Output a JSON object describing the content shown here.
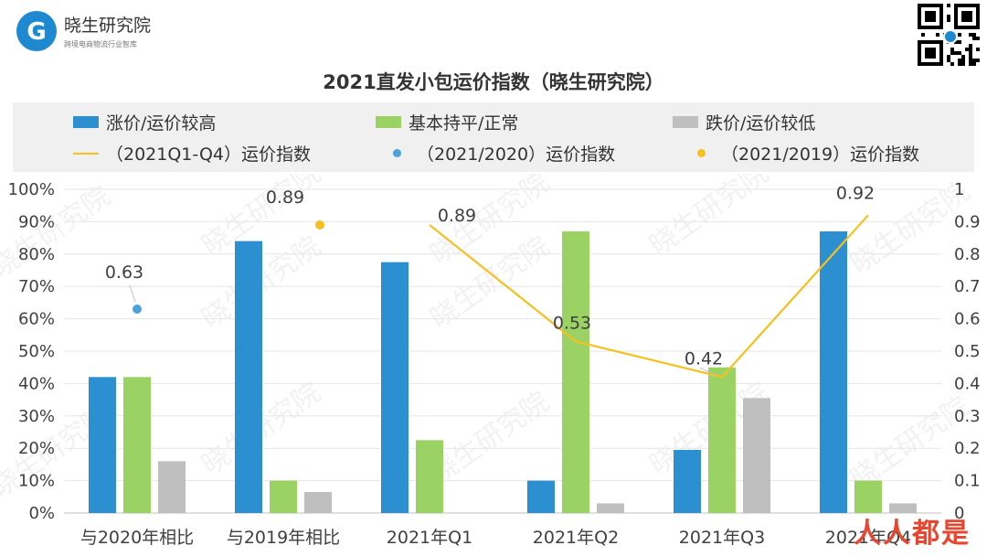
{
  "brand": {
    "name": "晓生研究院",
    "tagline": "跨境电商物流行业智库"
  },
  "colors": {
    "blue": "#2b8fd0",
    "green": "#9ad264",
    "gray": "#bfbfbf",
    "line_yellow": "#f5c020",
    "dot_blue": "#4aa3df",
    "dot_yellow": "#f5c020"
  },
  "watermark_text": "晓生研究院",
  "corner_mark": "人人都是",
  "chart_data": {
    "type": "bar",
    "title": "2021直发小包运价指数（晓生研究院）",
    "categories": [
      "与2020年相比",
      "与2019年相比",
      "2021年Q1",
      "2021年Q2",
      "2021年Q3",
      "2021年Q4"
    ],
    "series": [
      {
        "name": "涨价/运价较高",
        "values": [
          0.42,
          0.84,
          0.775,
          0.1,
          0.195,
          0.87
        ],
        "color": "#2b8fd0"
      },
      {
        "name": "基本持平/正常",
        "values": [
          0.42,
          0.1,
          0.225,
          0.87,
          0.45,
          0.1
        ],
        "color": "#9ad264"
      },
      {
        "name": "跌价/运价较低",
        "values": [
          0.16,
          0.065,
          0,
          0.03,
          0.355,
          0.03
        ],
        "color": "#bfbfbf"
      }
    ],
    "line_series": {
      "name": "（2021Q1-Q4）运价指数",
      "categories": [
        "2021年Q1",
        "2021年Q2",
        "2021年Q3",
        "2021年Q4"
      ],
      "values": [
        0.89,
        0.53,
        0.42,
        0.92
      ],
      "labels": [
        "0.89",
        "0.53",
        "0.42",
        "0.92"
      ],
      "color": "#f5c020"
    },
    "point_series": [
      {
        "name": "（2021/2020）运价指数",
        "category": "与2020年相比",
        "value": 0.63,
        "label": "0.63",
        "color": "#4aa3df"
      },
      {
        "name": "（2021/2019）运价指数",
        "category": "与2019年相比",
        "value": 0.89,
        "label": "0.89",
        "color": "#f5c020"
      }
    ],
    "y_left": {
      "ticks": [
        "0%",
        "10%",
        "20%",
        "30%",
        "40%",
        "50%",
        "60%",
        "70%",
        "80%",
        "90%",
        "100%"
      ],
      "ylim": [
        0,
        1
      ]
    },
    "y_right": {
      "ticks": [
        "0",
        "0.1",
        "0.2",
        "0.3",
        "0.4",
        "0.5",
        "0.6",
        "0.7",
        "0.8",
        "0.9",
        "1"
      ],
      "ylim": [
        0,
        1
      ]
    },
    "grid": true,
    "legend_position": "top"
  }
}
